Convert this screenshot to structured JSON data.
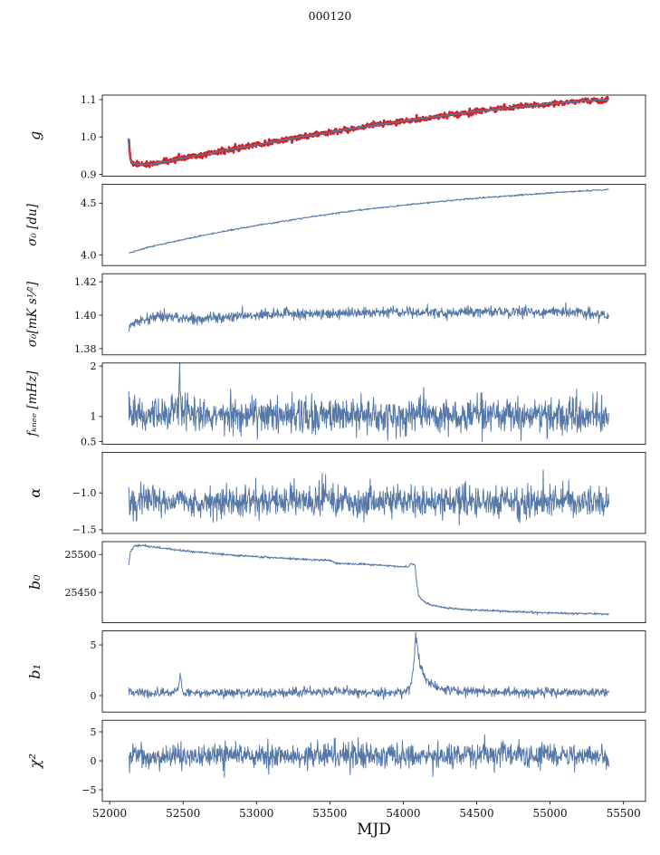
{
  "title": "000120",
  "chart_data": {
    "type": "line",
    "title": "000120",
    "x_axis": {
      "label": "MJD",
      "range": [
        51950,
        55650
      ],
      "ticks": [
        52000,
        52500,
        53000,
        53500,
        54000,
        54500,
        55000,
        55500
      ],
      "tick_labels": [
        "52000",
        "52500",
        "53000",
        "53500",
        "54000",
        "54500",
        "55000",
        "55500"
      ]
    },
    "line_color": "#5578a8",
    "overlay_color": "#d62020",
    "panels": [
      {
        "name": "g",
        "ylabel": "g",
        "ylim": [
          0.895,
          1.112
        ],
        "yticks": [
          {
            "v": 0.9,
            "label": "0.9"
          },
          {
            "v": 1.0,
            "label": "1.0"
          },
          {
            "v": 1.1,
            "label": "1.1"
          }
        ],
        "series": [
          {
            "name": "g-fit-red",
            "color": "#d62020",
            "width": 2.6,
            "noise": 0.0035,
            "seed": 3,
            "keypoints": [
              [
                52130,
                0.997
              ],
              [
                52136,
                0.965
              ],
              [
                52144,
                0.938
              ],
              [
                52155,
                0.929
              ],
              [
                52250,
                0.9265
              ],
              [
                52350,
                0.9315
              ],
              [
                52500,
                0.9435
              ],
              [
                52750,
                0.961
              ],
              [
                53000,
                0.979
              ],
              [
                53250,
                0.9965
              ],
              [
                53500,
                1.0125
              ],
              [
                53750,
                1.028
              ],
              [
                54000,
                1.0425
              ],
              [
                54250,
                1.056
              ],
              [
                54500,
                1.0685
              ],
              [
                54750,
                1.0795
              ],
              [
                55000,
                1.089
              ],
              [
                55200,
                1.0955
              ],
              [
                55400,
                1.1005
              ]
            ]
          },
          {
            "name": "g-blue",
            "color": "#5578a8",
            "width": 1.0,
            "noise": 0.0015,
            "seed": 4,
            "keypoints": [
              [
                52130,
                0.997
              ],
              [
                52136,
                0.965
              ],
              [
                52144,
                0.938
              ],
              [
                52155,
                0.929
              ],
              [
                52250,
                0.9265
              ],
              [
                52350,
                0.9315
              ],
              [
                52500,
                0.9435
              ],
              [
                52750,
                0.961
              ],
              [
                53000,
                0.979
              ],
              [
                53250,
                0.9965
              ],
              [
                53500,
                1.0125
              ],
              [
                53750,
                1.028
              ],
              [
                54000,
                1.0425
              ],
              [
                54250,
                1.056
              ],
              [
                54500,
                1.0685
              ],
              [
                54750,
                1.0795
              ],
              [
                55000,
                1.089
              ],
              [
                55200,
                1.0955
              ],
              [
                55400,
                1.1005
              ]
            ]
          }
        ]
      },
      {
        "name": "sigma0-du",
        "ylabel": "σ₀ [du]",
        "ylim": [
          3.9,
          4.68
        ],
        "yticks": [
          {
            "v": 4.0,
            "label": "4.0"
          },
          {
            "v": 4.5,
            "label": "4.5"
          }
        ],
        "series": [
          {
            "name": "sigma0-du-series",
            "color": "#5578a8",
            "width": 1.0,
            "noise": 0.0035,
            "seed": 5,
            "keypoints": [
              [
                52130,
                4.02
              ],
              [
                52250,
                4.07
              ],
              [
                52400,
                4.12
              ],
              [
                52600,
                4.18
              ],
              [
                52800,
                4.235
              ],
              [
                53000,
                4.285
              ],
              [
                53200,
                4.33
              ],
              [
                53400,
                4.375
              ],
              [
                53600,
                4.415
              ],
              [
                53800,
                4.45
              ],
              [
                54000,
                4.48
              ],
              [
                54200,
                4.51
              ],
              [
                54400,
                4.535
              ],
              [
                54600,
                4.558
              ],
              [
                54800,
                4.578
              ],
              [
                55000,
                4.598
              ],
              [
                55200,
                4.615
              ],
              [
                55400,
                4.63
              ]
            ]
          }
        ]
      },
      {
        "name": "sigma0-mK",
        "ylabel": "σ₀[mK s¹⁄²]",
        "ylim": [
          1.3763,
          1.4248
        ],
        "yticks": [
          {
            "v": 1.38,
            "label": "1.38"
          },
          {
            "v": 1.4,
            "label": "1.40"
          },
          {
            "v": 1.42,
            "label": "1.42"
          }
        ],
        "series": [
          {
            "name": "sigma0-mK-series",
            "color": "#5578a8",
            "width": 1.0,
            "noise": 0.0016,
            "seed": 6,
            "keypoints": [
              [
                52130,
                1.3935
              ],
              [
                52200,
                1.396
              ],
              [
                52280,
                1.3985
              ],
              [
                52360,
                1.3995
              ],
              [
                52450,
                1.398
              ],
              [
                52600,
                1.3975
              ],
              [
                52750,
                1.3985
              ],
              [
                52900,
                1.3995
              ],
              [
                53050,
                1.4002
              ],
              [
                53200,
                1.4008
              ],
              [
                53350,
                1.4005
              ],
              [
                53500,
                1.401
              ],
              [
                53700,
                1.4012
              ],
              [
                53900,
                1.4018
              ],
              [
                54100,
                1.402
              ],
              [
                54300,
                1.4015
              ],
              [
                54500,
                1.402
              ],
              [
                54700,
                1.4025
              ],
              [
                54900,
                1.402
              ],
              [
                55050,
                1.4018
              ],
              [
                55200,
                1.402
              ],
              [
                55300,
                1.4005
              ],
              [
                55400,
                1.3995
              ]
            ]
          }
        ]
      },
      {
        "name": "fknee",
        "ylabel": "fₖₙₑₑ [mHz]",
        "ylim": [
          0.45,
          2.06
        ],
        "yticks": [
          {
            "v": 0.5,
            "label": "0.5"
          },
          {
            "v": 1,
            "label": "1"
          },
          {
            "v": 2,
            "label": "2"
          }
        ],
        "series": [
          {
            "name": "fknee-series",
            "color": "#5578a8",
            "width": 1.0,
            "noise": 0.175,
            "seed": 7,
            "keypoints": [
              [
                52130,
                1.04
              ],
              [
                52465,
                1.04
              ],
              [
                52478,
                1.9
              ],
              [
                52490,
                1.04
              ],
              [
                55400,
                1.03
              ]
            ]
          }
        ]
      },
      {
        "name": "alpha",
        "ylabel": "α",
        "ylim": [
          -1.55,
          -0.45
        ],
        "yticks": [
          {
            "v": -1.5,
            "label": "−1.5"
          },
          {
            "v": -1.0,
            "label": "−1.0"
          }
        ],
        "series": [
          {
            "name": "alpha-series",
            "color": "#5578a8",
            "width": 1.0,
            "noise": 0.105,
            "seed": 8,
            "keypoints": [
              [
                52130,
                -1.115
              ],
              [
                55400,
                -1.115
              ]
            ]
          }
        ]
      },
      {
        "name": "b0",
        "ylabel": "b₀",
        "ylim": [
          25410,
          25517
        ],
        "yticks": [
          {
            "v": 25450,
            "label": "25450"
          },
          {
            "v": 25500,
            "label": "25500"
          }
        ],
        "series": [
          {
            "name": "b0-series",
            "color": "#5578a8",
            "width": 1.0,
            "noise": 0.7,
            "seed": 9,
            "keypoints": [
              [
                52130,
                25486
              ],
              [
                52142,
                25504
              ],
              [
                52165,
                25511
              ],
              [
                52220,
                25512
              ],
              [
                52300,
                25509.5
              ],
              [
                52420,
                25507
              ],
              [
                52560,
                25504
              ],
              [
                52700,
                25501.5
              ],
              [
                52850,
                25499
              ],
              [
                53000,
                25497
              ],
              [
                53150,
                25495.5
              ],
              [
                53300,
                25494
              ],
              [
                53420,
                25493
              ],
              [
                53500,
                25492.5
              ],
              [
                53540,
                25488.5
              ],
              [
                53650,
                25487.5
              ],
              [
                53800,
                25486.5
              ],
              [
                53950,
                25484.5
              ],
              [
                54030,
                25483.5
              ],
              [
                54055,
                25488
              ],
              [
                54080,
                25486.5
              ],
              [
                54092,
                25462
              ],
              [
                54105,
                25446
              ],
              [
                54130,
                25439
              ],
              [
                54180,
                25434
              ],
              [
                54260,
                25430.5
              ],
              [
                54380,
                25428
              ],
              [
                54520,
                25426.5
              ],
              [
                54700,
                25425
              ],
              [
                54900,
                25423.5
              ],
              [
                55100,
                25422.5
              ],
              [
                55400,
                25421.5
              ]
            ]
          }
        ]
      },
      {
        "name": "b1",
        "ylabel": "b₁",
        "ylim": [
          -1.63,
          6.38
        ],
        "yticks": [
          {
            "v": 0,
            "label": "0"
          },
          {
            "v": 5,
            "label": "5"
          }
        ],
        "series": [
          {
            "name": "b1-series",
            "color": "#5578a8",
            "width": 1.0,
            "noise": 0.22,
            "seed": 10,
            "keypoints": [
              [
                52130,
                0.3
              ],
              [
                52455,
                0.3
              ],
              [
                52470,
                1.0
              ],
              [
                52480,
                2.05
              ],
              [
                52492,
                0.9
              ],
              [
                52505,
                0.3
              ],
              [
                53480,
                0.3
              ],
              [
                53540,
                0.55
              ],
              [
                53600,
                0.35
              ],
              [
                54020,
                0.3
              ],
              [
                54055,
                1.2
              ],
              [
                54072,
                3.2
              ],
              [
                54085,
                6.15
              ],
              [
                54098,
                4.6
              ],
              [
                54115,
                3.1
              ],
              [
                54140,
                2.0
              ],
              [
                54175,
                1.25
              ],
              [
                54220,
                0.85
              ],
              [
                54290,
                0.6
              ],
              [
                54380,
                0.45
              ],
              [
                54520,
                0.38
              ],
              [
                55400,
                0.3
              ]
            ]
          }
        ]
      },
      {
        "name": "chi2",
        "ylabel": "χ²",
        "ylim": [
          -7,
          7
        ],
        "yticks": [
          {
            "v": -5,
            "label": "−5"
          },
          {
            "v": 0,
            "label": "0"
          },
          {
            "v": 5,
            "label": "5"
          }
        ],
        "series": [
          {
            "name": "chi2-series",
            "color": "#5578a8",
            "width": 1.0,
            "noise": 1.05,
            "seed": 11,
            "keypoints": [
              [
                52130,
                0.9
              ],
              [
                55400,
                0.9
              ]
            ]
          }
        ]
      }
    ]
  }
}
